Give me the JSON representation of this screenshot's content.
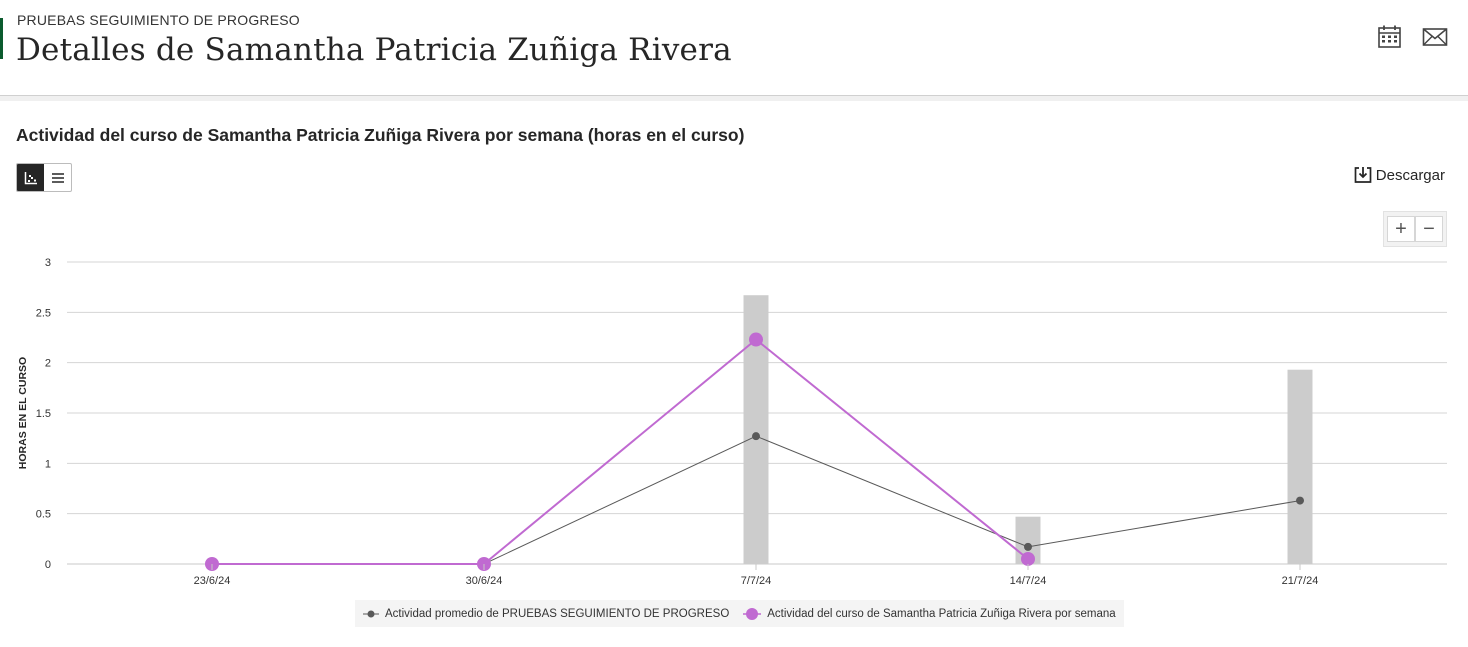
{
  "header": {
    "eyebrow": "PRUEBAS SEGUIMIENTO DE PROGRESO",
    "title": "Detalles de Samantha Patricia Zuñiga Rivera"
  },
  "section": {
    "chart_title": "Actividad del curso de Samantha Patricia Zuñiga Rivera por semana (horas en el curso)",
    "download_label": "Descargar"
  },
  "colors": {
    "accent": "#0b5b2e",
    "student_line": "#c06ad1",
    "average_line": "#595959",
    "bars": "#cccccc"
  },
  "chart_data": {
    "type": "line",
    "categories": [
      "23/6/24",
      "30/6/24",
      "7/7/24",
      "14/7/24",
      "21/7/24"
    ],
    "ylabel": "HORAS EN EL CURSO",
    "ylim": [
      0,
      3
    ],
    "yticks": [
      "0",
      "0.5",
      "1",
      "1.5",
      "2",
      "2.5",
      "3"
    ],
    "grid": true,
    "legend_position": "bottom",
    "bars": {
      "values": [
        0,
        0,
        2.67,
        0.47,
        1.93
      ]
    },
    "series": [
      {
        "name": "Actividad promedio de PRUEBAS SEGUIMIENTO DE PROGRESO",
        "values": [
          0,
          0,
          1.27,
          0.17,
          0.63
        ]
      },
      {
        "name": "Actividad del curso de Samantha Patricia Zuñiga Rivera por semana",
        "values": [
          0,
          0,
          2.23,
          0.05,
          null
        ]
      }
    ]
  },
  "icons": {
    "calendar": "calendar-icon",
    "email": "email-icon",
    "chart_view": "chart-view-icon",
    "list_view": "list-view-icon",
    "download": "download-icon"
  }
}
